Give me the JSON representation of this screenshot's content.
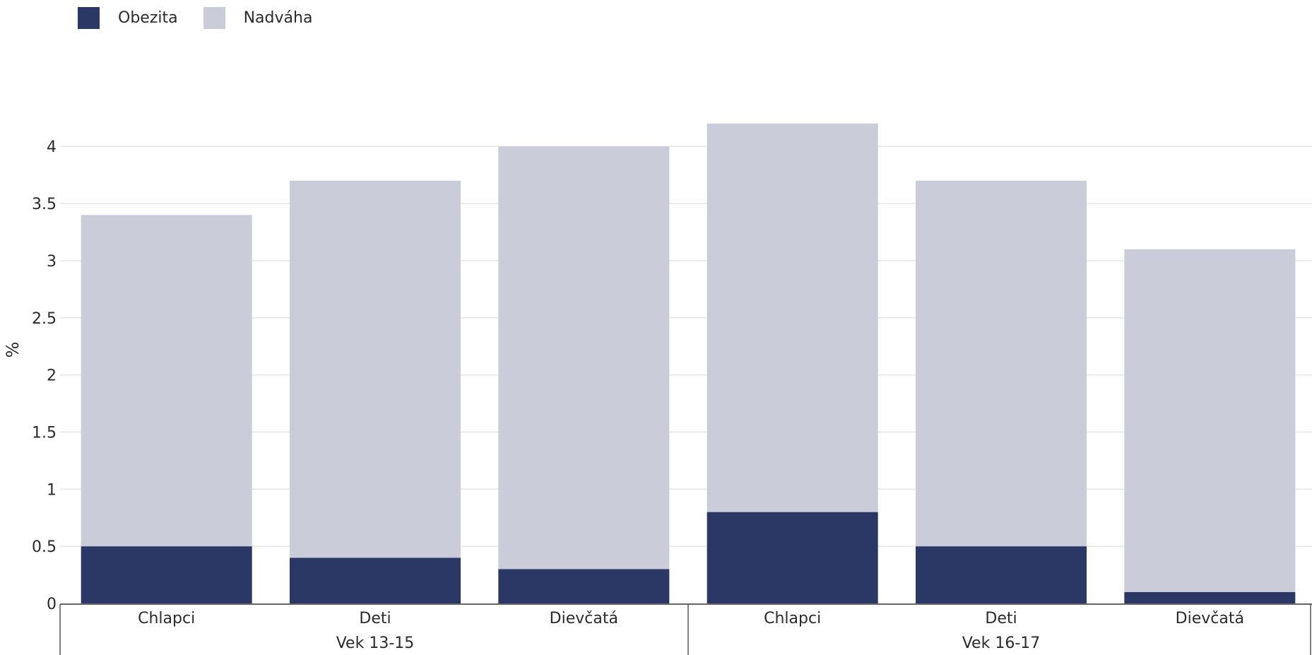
{
  "legend": [
    {
      "label": "Obezita",
      "color": "#2b3764"
    },
    {
      "label": "Nadváha",
      "color": "#cacdd9"
    }
  ],
  "chart_data": {
    "type": "bar",
    "stacked": true,
    "ylabel": "%",
    "ylim": [
      0,
      4.3
    ],
    "yticks": [
      "0",
      "0.5",
      "1",
      "1.5",
      "2",
      "2.5",
      "3",
      "3.5",
      "4"
    ],
    "groups": [
      {
        "label": "Vek 13-15",
        "categories": [
          "Chlapci",
          "Deti",
          "Dievčatá"
        ]
      },
      {
        "label": "Vek 16-17",
        "categories": [
          "Chlapci",
          "Deti",
          "Dievčatá"
        ]
      }
    ],
    "series": [
      {
        "name": "Obezita",
        "color": "#2b3764",
        "values": [
          0.5,
          0.4,
          0.3,
          0.8,
          0.5,
          0.1
        ]
      },
      {
        "name": "Nadváha",
        "color": "#cacdd9",
        "values": [
          2.9,
          3.3,
          3.7,
          3.4,
          3.2,
          3.0
        ]
      }
    ],
    "grid": true,
    "legend_position": "top-left"
  }
}
